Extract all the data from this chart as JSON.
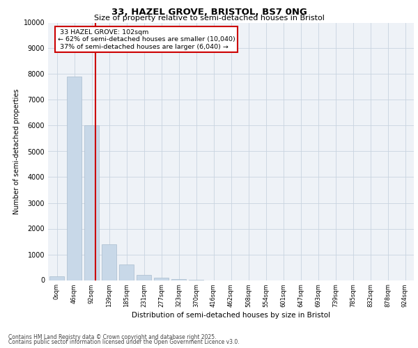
{
  "title1": "33, HAZEL GROVE, BRISTOL, BS7 0NG",
  "title2": "Size of property relative to semi-detached houses in Bristol",
  "xlabel": "Distribution of semi-detached houses by size in Bristol",
  "ylabel": "Number of semi-detached properties",
  "categories": [
    "0sqm",
    "46sqm",
    "92sqm",
    "139sqm",
    "185sqm",
    "231sqm",
    "277sqm",
    "323sqm",
    "370sqm",
    "416sqm",
    "462sqm",
    "508sqm",
    "554sqm",
    "601sqm",
    "647sqm",
    "693sqm",
    "739sqm",
    "785sqm",
    "832sqm",
    "878sqm",
    "924sqm"
  ],
  "values": [
    150,
    7900,
    6000,
    1400,
    600,
    200,
    100,
    50,
    10,
    0,
    0,
    0,
    0,
    0,
    0,
    0,
    0,
    0,
    0,
    0,
    0
  ],
  "bar_color": "#c8d8e8",
  "bar_edge_color": "#aabcce",
  "pct_smaller": 62,
  "pct_larger": 37,
  "n_smaller": 10040,
  "n_larger": 6040,
  "property_sqm": 102,
  "ylim": [
    0,
    10000
  ],
  "yticks": [
    0,
    1000,
    2000,
    3000,
    4000,
    5000,
    6000,
    7000,
    8000,
    9000,
    10000
  ],
  "annotation_box_color": "#ffffff",
  "annotation_box_edge": "#cc0000",
  "grid_color": "#c8d4e0",
  "bg_color": "#eef2f7",
  "footer1": "Contains HM Land Registry data © Crown copyright and database right 2025.",
  "footer2": "Contains public sector information licensed under the Open Government Licence v3.0."
}
